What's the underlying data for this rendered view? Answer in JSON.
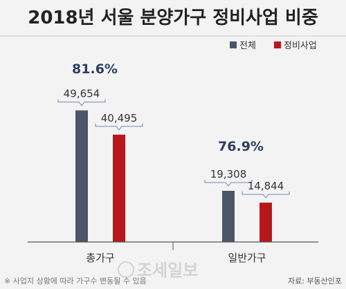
{
  "chart_data": {
    "type": "bar",
    "title": "2018년 서울 분양가구 정비사업 비중",
    "categories": [
      "총가구",
      "일반가구"
    ],
    "series": [
      {
        "name": "전체",
        "values": [
          49654,
          19308
        ],
        "labels": [
          "49,654",
          "19,308"
        ],
        "color": "#4d5568"
      },
      {
        "name": "정비사업",
        "values": [
          40495,
          14844
        ],
        "labels": [
          "40,495",
          "14,844"
        ],
        "color": "#b8161d"
      }
    ],
    "group_annotations": [
      "81.6%",
      "76.9%"
    ],
    "ylim": [
      0,
      60000
    ],
    "grid": false,
    "legend_position": "top-right",
    "footnote": "※ 사업지 상황에 따라 가구수 변동될 수 있음",
    "source": "자료: 부동산인포",
    "watermark": "조세일보"
  }
}
